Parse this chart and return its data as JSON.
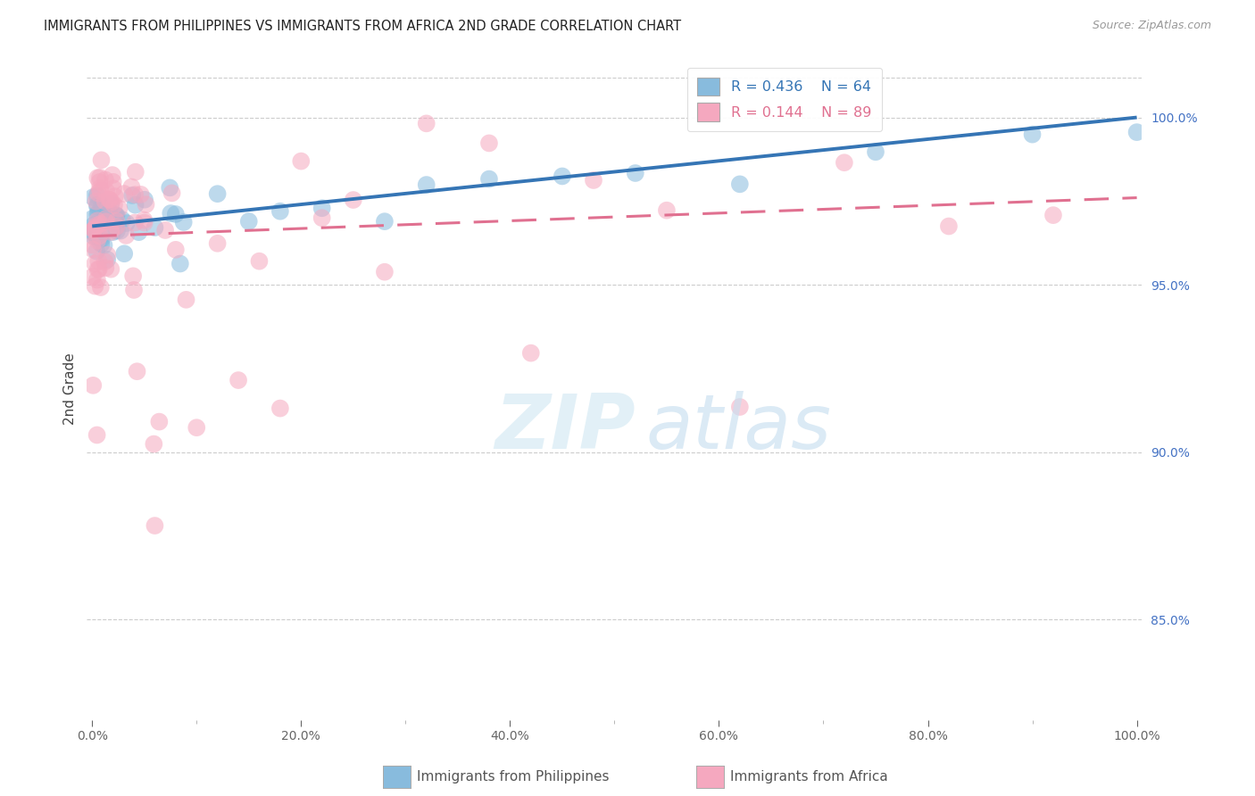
{
  "title": "IMMIGRANTS FROM PHILIPPINES VS IMMIGRANTS FROM AFRICA 2ND GRADE CORRELATION CHART",
  "source": "Source: ZipAtlas.com",
  "ylabel": "2nd Grade",
  "watermark_zip": "ZIP",
  "watermark_atlas": "atlas",
  "blue_label": "Immigrants from Philippines",
  "pink_label": "Immigrants from Africa",
  "blue_R": 0.436,
  "blue_N": 64,
  "pink_R": 0.144,
  "pink_N": 89,
  "blue_color": "#88bbdd",
  "pink_color": "#f5a8bf",
  "blue_line_color": "#3575b5",
  "pink_line_color": "#e07090",
  "ytick_color": "#4472c4",
  "yticks": [
    85.0,
    90.0,
    95.0,
    100.0
  ],
  "ylim": [
    82.0,
    101.8
  ],
  "xlim": [
    -0.005,
    1.005
  ],
  "background_color": "#ffffff",
  "grid_color": "#cccccc",
  "blue_line_x0": 0.0,
  "blue_line_y0": 96.75,
  "blue_line_x1": 1.0,
  "blue_line_y1": 100.0,
  "pink_line_x0": 0.0,
  "pink_line_y0": 96.45,
  "pink_line_x1": 1.0,
  "pink_line_y1": 97.6
}
